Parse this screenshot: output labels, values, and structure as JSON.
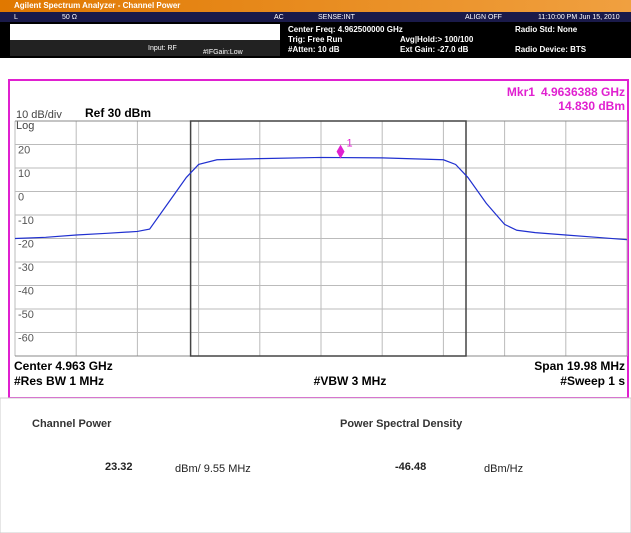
{
  "window_title": "Agilent Spectrum Analyzer - Channel Power",
  "status": {
    "mode": "L",
    "impedance": "50 Ω",
    "coupling": "AC",
    "sense": "SENSE:INT",
    "align": "ALIGN OFF",
    "time": "11:10:00 PM Jun 15, 2010"
  },
  "settings": {
    "input": "Input: RF",
    "if_gain": "#IFGain:Low",
    "center_freq": "Center Freq: 4.962500000 GHz",
    "trig": "Trig: Free Run",
    "atten": "#Atten: 10 dB",
    "avg_hold": "Avg|Hold:> 100/100",
    "ext_gain": "Ext Gain: -27.0 dB",
    "radio_std": "Radio Std: None",
    "radio_device": "Radio Device: BTS"
  },
  "chart_data": {
    "type": "line",
    "scale_label": "10 dB/div",
    "ref_label": "Ref 30 dBm",
    "log_label": "Log",
    "marker": {
      "name": "Mkr1",
      "number": "1",
      "freq_label": "4.9636388 GHz",
      "level_label": "14.830 dBm",
      "x": 4.9636388,
      "y": 14.83,
      "color": "#e020d0"
    },
    "x": [
      4.953,
      4.954,
      4.955,
      4.956,
      4.957,
      4.9574,
      4.958,
      4.9586,
      4.959,
      4.9596,
      4.961,
      4.963,
      4.965,
      4.967,
      4.9674,
      4.9678,
      4.9684,
      4.969,
      4.9694,
      4.97,
      4.971,
      4.972,
      4.973
    ],
    "values": [
      -20,
      -19.5,
      -18.5,
      -17.8,
      -17,
      -16,
      -5,
      6,
      11.5,
      13.5,
      14,
      14.5,
      14.3,
      13.5,
      11.5,
      6,
      -5,
      -14,
      -16.5,
      -17.5,
      -18.5,
      -19.5,
      -20.5
    ],
    "color": "#2030d0",
    "xlim": [
      4.953,
      4.973
    ],
    "ylim": [
      -70,
      30
    ],
    "yticks": [
      20,
      10,
      0,
      -10,
      -20,
      -30,
      -40,
      -50,
      -60
    ],
    "center_label": "Center 4.963 GHz",
    "span_label": "Span 19.98 MHz",
    "rbw_label": "#Res BW 1 MHz",
    "vbw_label": "#VBW 3 MHz",
    "sweep_label": "#Sweep 1 s"
  },
  "results": {
    "channel_power_title": "Channel Power",
    "channel_power_value": "23.32",
    "channel_power_unit": "dBm/ 9.55 MHz",
    "psd_title": "Power Spectral Density",
    "psd_value": "-46.48",
    "psd_unit": "dBm/Hz"
  }
}
